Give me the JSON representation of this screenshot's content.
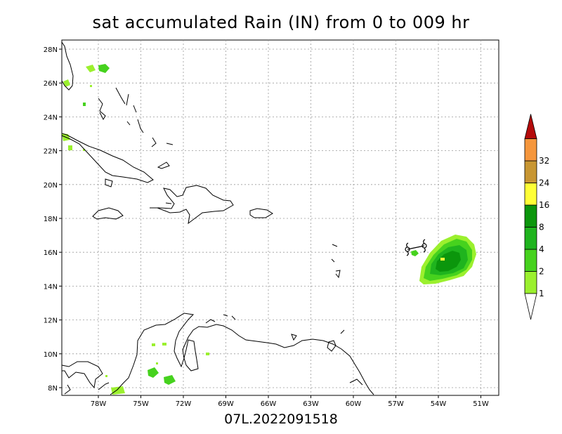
{
  "title": "sat accumulated Rain (IN) from 0 to 009 hr",
  "footer": "07L.2022091518",
  "map": {
    "lon_labels": [
      "78W",
      "75W",
      "72W",
      "69W",
      "66W",
      "63W",
      "60W",
      "57W",
      "54W",
      "51W"
    ],
    "lat_labels": [
      "28N",
      "26N",
      "24N",
      "22N",
      "20N",
      "18N",
      "16N",
      "14N",
      "12N",
      "10N",
      "8N"
    ],
    "grid": true
  },
  "colorbar": {
    "labels": [
      "1",
      "2",
      "4",
      "8",
      "16",
      "24",
      "32"
    ],
    "colors": [
      "#9bf02e",
      "#46d21e",
      "#1fb41e",
      "#0b960c",
      "#ffff36",
      "#c89632",
      "#f5963c",
      "#b40a0a"
    ]
  },
  "storm_track": {
    "symbol": "tropical-storm-symbol"
  }
}
